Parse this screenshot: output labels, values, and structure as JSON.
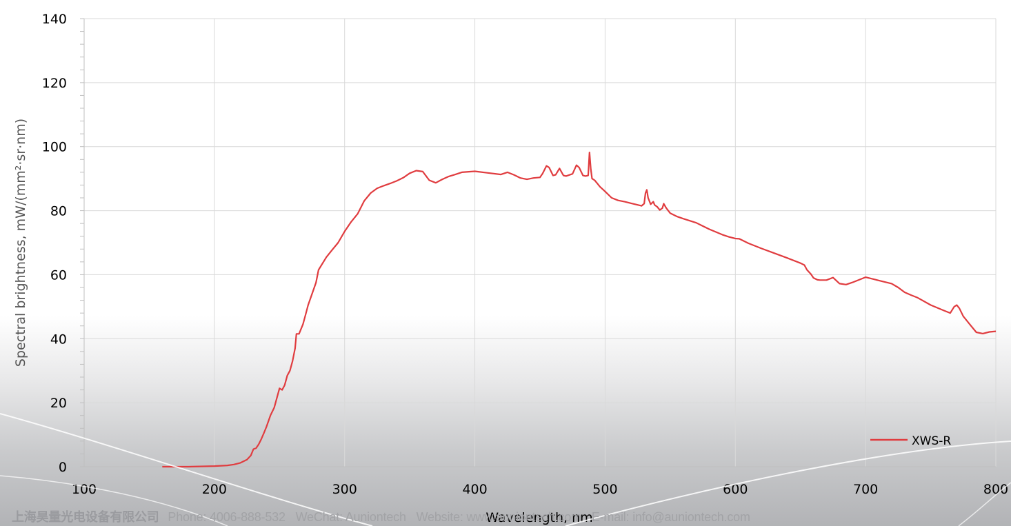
{
  "chart_data": {
    "type": "line",
    "xlabel": "Wavelength, nm",
    "ylabel": "Spectral brightness, mW/(mm²·sr·nm)",
    "xlim": [
      100,
      800
    ],
    "ylim": [
      0,
      140
    ],
    "x_ticks": [
      "100",
      "200",
      "300",
      "400",
      "500",
      "600",
      "700",
      "800"
    ],
    "y_ticks": [
      "0",
      "20",
      "40",
      "60",
      "80",
      "100",
      "120",
      "140"
    ],
    "grid": "major gridlines on both axes",
    "legend_position": "bottom-right",
    "series": [
      {
        "name": "XWS-R",
        "color": "#e03c3f",
        "x": [
          160,
          180,
          200,
          210,
          215,
          220,
          225,
          228,
          230,
          232,
          234,
          236,
          238,
          240,
          243,
          246,
          250,
          252,
          254,
          256,
          258,
          260,
          262,
          263,
          265,
          268,
          270,
          272,
          275,
          278,
          280,
          283,
          286,
          290,
          295,
          300,
          305,
          310,
          315,
          320,
          325,
          330,
          335,
          340,
          345,
          350,
          355,
          360,
          365,
          370,
          375,
          380,
          385,
          390,
          400,
          410,
          420,
          425,
          430,
          435,
          440,
          445,
          450,
          452,
          455,
          457,
          460,
          462,
          465,
          468,
          470,
          475,
          478,
          480,
          483,
          485,
          487,
          488,
          489,
          490,
          492,
          494,
          496,
          500,
          505,
          510,
          515,
          520,
          525,
          528,
          530,
          531,
          532,
          533,
          535,
          537,
          538,
          540,
          542,
          544,
          545,
          547,
          550,
          555,
          560,
          570,
          580,
          590,
          595,
          600,
          603,
          610,
          620,
          630,
          640,
          650,
          653,
          655,
          658,
          660,
          663,
          665,
          670,
          675,
          680,
          685,
          690,
          700,
          710,
          720,
          725,
          730,
          735,
          740,
          750,
          760,
          765,
          768,
          770,
          772,
          775,
          780,
          785,
          790,
          795,
          800
        ],
        "y": [
          0,
          0,
          0.2,
          0.4,
          0.7,
          1.2,
          2.2,
          3.5,
          5.5,
          5.8,
          7,
          8.6,
          10.5,
          12.5,
          16,
          18.5,
          24.5,
          24,
          25.5,
          28.5,
          30,
          33,
          37,
          41.5,
          41.5,
          44.5,
          47.5,
          50.5,
          54,
          57.5,
          61.5,
          63.5,
          65.5,
          67.5,
          70,
          73.5,
          76.5,
          79,
          83,
          85.5,
          87,
          87.8,
          88.5,
          89.3,
          90.3,
          91.7,
          92.5,
          92.2,
          89.5,
          88.7,
          89.8,
          90.7,
          91.3,
          92,
          92.3,
          91.8,
          91.3,
          92,
          91.2,
          90.2,
          89.8,
          90.2,
          90.4,
          91.6,
          94,
          93.5,
          91,
          91.2,
          93.2,
          91,
          90.8,
          91.5,
          94.2,
          93.5,
          91,
          90.8,
          91,
          98.2,
          93,
          90,
          89.5,
          88.5,
          87.5,
          86,
          84,
          83.2,
          82.8,
          82.3,
          81.8,
          81.5,
          82.2,
          85.5,
          86.5,
          84,
          82,
          82.8,
          81.8,
          81.2,
          80.2,
          80.8,
          82.2,
          80.8,
          79.2,
          78.2,
          77.5,
          76.2,
          74.2,
          72.5,
          71.8,
          71.3,
          71.2,
          69.8,
          68.2,
          66.7,
          65.2,
          63.6,
          63,
          61.5,
          60.2,
          59,
          58.4,
          58.3,
          58.3,
          59.1,
          57.2,
          56.9,
          57.6,
          59.2,
          58.2,
          57.2,
          56,
          54.5,
          53.6,
          52.8,
          50.5,
          48.8,
          48,
          50,
          50.5,
          49.5,
          47,
          44.5,
          42,
          41.6,
          42.1,
          42.3
        ]
      }
    ]
  },
  "footer": {
    "company": "上海昊量光电设备有限公司",
    "phone": "Phone: 4006-888-532",
    "wechat": "WeChat: Auniontech",
    "website": "Website: www.auniontech.com",
    "email": "E-mail: info@auniontech.com"
  }
}
